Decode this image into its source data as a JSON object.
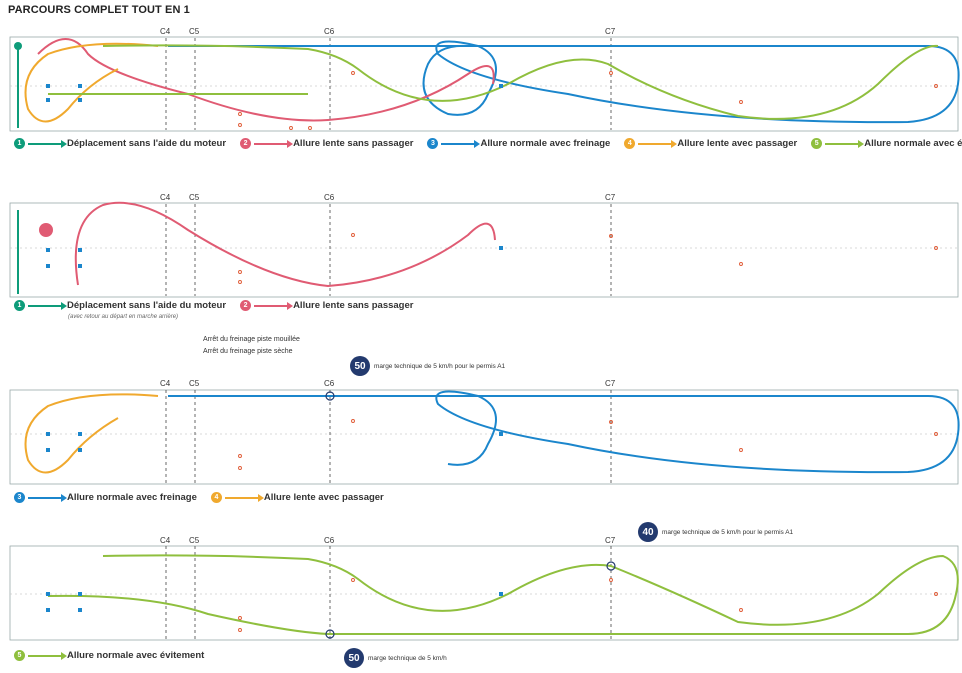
{
  "title": "PARCOURS COMPLET TOUT EN 1",
  "colors": {
    "green_dark": "#0e9c7a",
    "pink": "#e05b73",
    "blue": "#1b86cc",
    "orange": "#f0a92e",
    "lime": "#8fbf3e",
    "cone": "#e05b36",
    "navy": "#233a6e"
  },
  "cone_labels": [
    "C4",
    "C5",
    "C6",
    "C7"
  ],
  "panel1": {
    "legend": [
      {
        "num": "1",
        "label": "Déplacement sans l'aide du moteur",
        "color": "#0e9c7a"
      },
      {
        "num": "2",
        "label": "Allure lente sans passager",
        "color": "#e05b73"
      },
      {
        "num": "3",
        "label": "Allure normale avec freinage",
        "color": "#1b86cc"
      },
      {
        "num": "4",
        "label": "Allure lente avec passager",
        "color": "#f0a92e"
      },
      {
        "num": "5",
        "label": "Allure normale avec évitement",
        "color": "#8fbf3e"
      }
    ]
  },
  "panel2": {
    "legend": [
      {
        "num": "1",
        "label": "Déplacement sans l'aide du moteur",
        "color": "#0e9c7a"
      },
      {
        "num": "2",
        "label": "Allure lente sans passager",
        "color": "#e05b73"
      }
    ],
    "sub": "(avec retour au départ en marche arrière)"
  },
  "panel3": {
    "note_wet": "Arrêt du freinage piste mouillée",
    "note_dry": "Arrêt du freinage piste sèche",
    "speed_value": "50",
    "speed_text": "marge technique de 5 km/h pour le permis A1",
    "legend": [
      {
        "num": "3",
        "label": "Allure normale avec freinage",
        "color": "#1b86cc"
      },
      {
        "num": "4",
        "label": "Allure lente avec passager",
        "color": "#f0a92e"
      }
    ]
  },
  "panel4": {
    "speed_top_value": "40",
    "speed_top_text": "marge technique de 5 km/h pour le permis A1",
    "speed_bottom_value": "50",
    "speed_bottom_text": "marge technique de 5 km/h",
    "legend": [
      {
        "num": "5",
        "label": "Allure normale avec évitement",
        "color": "#8fbf3e"
      }
    ]
  }
}
